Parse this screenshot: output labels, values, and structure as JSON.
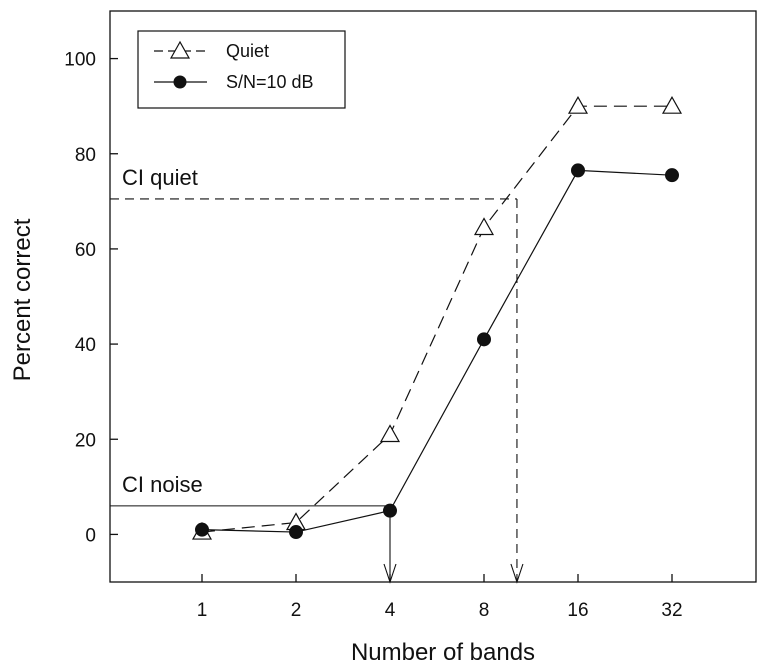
{
  "chart_data": {
    "type": "line",
    "xlabel": "Number of bands",
    "ylabel": "Percent correct",
    "x_scale": "log2",
    "categories": [
      "1",
      "2",
      "4",
      "8",
      "16",
      "32"
    ],
    "x": [
      1,
      2,
      4,
      8,
      16,
      32
    ],
    "ylim": [
      -10,
      110
    ],
    "yticks": [
      "0",
      "20",
      "40",
      "60",
      "80",
      "100"
    ],
    "grid": false,
    "legend_position": "top-left",
    "series": [
      {
        "name": "Quiet",
        "marker": "open-triangle",
        "line_style": "dashed",
        "values": [
          0.5,
          2.5,
          21,
          64.5,
          90,
          90
        ]
      },
      {
        "name": "S/N=10 dB",
        "marker": "filled-circle",
        "line_style": "solid",
        "values": [
          1,
          0.5,
          5,
          41,
          76.5,
          75.5
        ]
      }
    ],
    "annotations": [
      {
        "label": "CI quiet",
        "y": 70.5,
        "x": 10.2,
        "line_style": "dashed"
      },
      {
        "label": "CI noise",
        "y": 6,
        "x": 4,
        "line_style": "solid"
      }
    ]
  }
}
